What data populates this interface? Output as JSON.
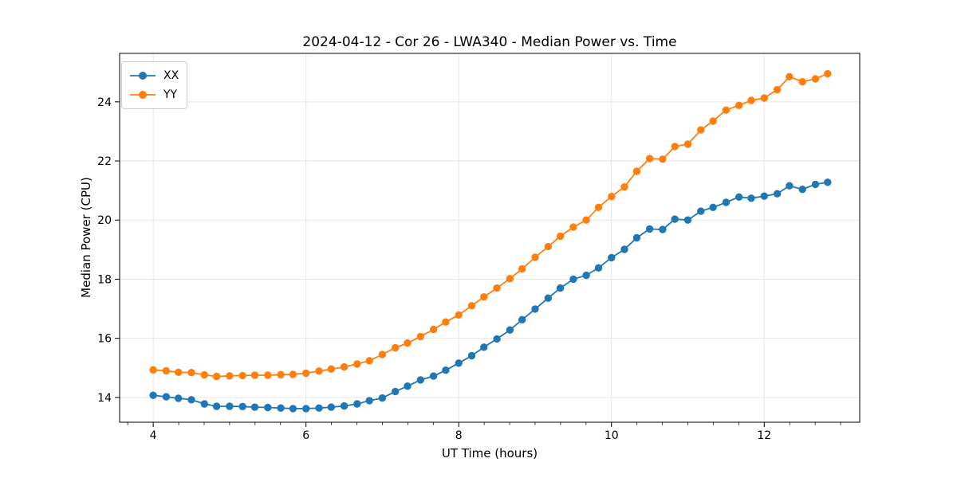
{
  "chart_data": {
    "type": "line",
    "title": "2024-04-12 - Cor 26 - LWA340 - Median Power vs. Time",
    "xlabel": "UT Time (hours)",
    "ylabel": "Median Power (CPU)",
    "x": [
      4.0,
      4.17,
      4.33,
      4.5,
      4.67,
      4.83,
      5.0,
      5.17,
      5.33,
      5.5,
      5.67,
      5.83,
      6.0,
      6.17,
      6.33,
      6.5,
      6.67,
      6.83,
      7.0,
      7.17,
      7.33,
      7.5,
      7.67,
      7.83,
      8.0,
      8.17,
      8.33,
      8.5,
      8.67,
      8.83,
      9.0,
      9.17,
      9.33,
      9.5,
      9.67,
      9.83,
      10.0,
      10.17,
      10.33,
      10.5,
      10.67,
      10.83,
      11.0,
      11.17,
      11.33,
      11.5,
      11.67,
      11.83,
      12.0,
      12.17,
      12.33,
      12.5,
      12.67,
      12.83
    ],
    "series": [
      {
        "name": "XX",
        "color": "#1f77b4",
        "marker": "circle",
        "values": [
          14.07,
          14.02,
          13.97,
          13.92,
          13.78,
          13.7,
          13.7,
          13.69,
          13.67,
          13.66,
          13.64,
          13.62,
          13.62,
          13.64,
          13.67,
          13.71,
          13.78,
          13.89,
          13.98,
          14.2,
          14.38,
          14.59,
          14.72,
          14.92,
          15.16,
          15.41,
          15.7,
          15.98,
          16.28,
          16.63,
          16.99,
          17.36,
          17.7,
          18.0,
          18.13,
          18.38,
          18.73,
          19.01,
          19.4,
          19.7,
          19.68,
          20.03,
          20.0,
          20.3,
          20.43,
          20.6,
          20.78,
          20.74,
          20.81,
          20.89,
          21.16,
          21.04,
          21.21,
          21.28
        ]
      },
      {
        "name": "YY",
        "color": "#ff7f0e",
        "marker": "circle",
        "values": [
          14.93,
          14.9,
          14.85,
          14.84,
          14.76,
          14.71,
          14.73,
          14.74,
          14.75,
          14.75,
          14.77,
          14.78,
          14.82,
          14.89,
          14.96,
          15.03,
          15.13,
          15.24,
          15.45,
          15.68,
          15.84,
          16.06,
          16.3,
          16.55,
          16.79,
          17.1,
          17.4,
          17.7,
          18.02,
          18.35,
          18.74,
          19.1,
          19.45,
          19.76,
          20.0,
          20.43,
          20.8,
          21.12,
          21.65,
          22.08,
          22.06,
          22.49,
          22.57,
          23.05,
          23.35,
          23.72,
          23.88,
          24.05,
          24.13,
          24.41,
          24.85,
          24.68,
          24.78,
          24.95
        ]
      }
    ],
    "xlim": [
      3.56,
      13.25
    ],
    "ylim": [
      13.16,
      25.64
    ],
    "xticks": [
      4,
      6,
      8,
      10,
      12
    ],
    "yticks": [
      14,
      16,
      18,
      20,
      22,
      24
    ],
    "x_minor_tick_step": 0.33333,
    "grid": true,
    "grid_color": "#e6e6e6",
    "spine_color": "#000000",
    "legend": {
      "position": "upper-left",
      "entries": [
        "XX",
        "YY"
      ]
    }
  }
}
